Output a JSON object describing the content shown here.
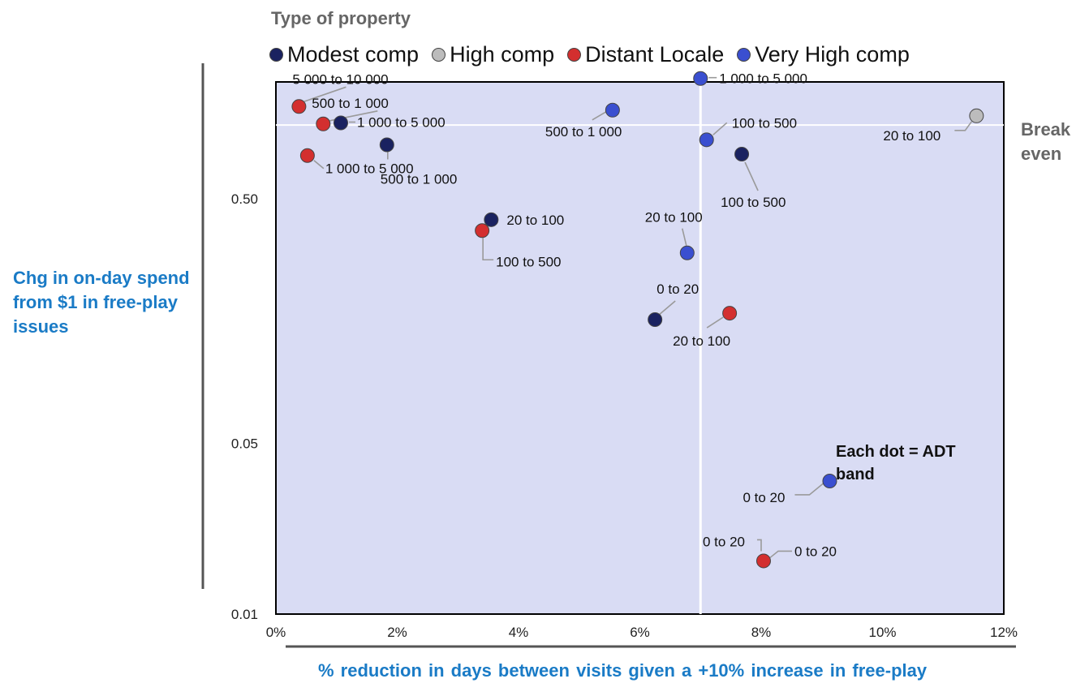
{
  "legend": {
    "title": "Type of property",
    "items": [
      {
        "label": "Modest comp",
        "color": "#1a2260"
      },
      {
        "label": "High comp",
        "color": "#bcbcbc"
      },
      {
        "label": "Distant Locale",
        "color": "#d32f2f"
      },
      {
        "label": "Very High comp",
        "color": "#3a4fd0"
      }
    ]
  },
  "annotations": {
    "break_even_line1": "Break",
    "break_even_line2": "even",
    "callout_line1": "Each dot = ADT",
    "callout_line2": "band"
  },
  "chart_data": {
    "type": "scatter",
    "title": "",
    "xlabel": "% reduction in days between visits given a +10% increase in free-play",
    "ylabel": "Chg in on-day spend from $1 in free-play issues",
    "x_scale": "linear",
    "y_scale": "log",
    "xlim": [
      0,
      12
    ],
    "ylim": [
      0.01,
      1.5
    ],
    "x_ticks": [
      {
        "value": 0,
        "label": "0%"
      },
      {
        "value": 2,
        "label": "2%"
      },
      {
        "value": 4,
        "label": "4%"
      },
      {
        "value": 6,
        "label": "6%"
      },
      {
        "value": 8,
        "label": "8%"
      },
      {
        "value": 10,
        "label": "10%"
      },
      {
        "value": 12,
        "label": "12%"
      }
    ],
    "y_ticks": [
      {
        "value": 0.01,
        "label": "0.01"
      },
      {
        "value": 0.05,
        "label": "0.05"
      },
      {
        "value": 0.5,
        "label": "0.50"
      }
    ],
    "reference_lines": {
      "x": 7.0,
      "y": 1.0
    },
    "background": "#d9dcf4",
    "series": [
      {
        "name": "Modest comp",
        "color": "#1a2260",
        "points": [
          {
            "label": "1 000 to 5 000",
            "x": 1.07,
            "y": 1.02
          },
          {
            "label": "500 to 1 000",
            "x": 1.83,
            "y": 0.83
          },
          {
            "label": "20 to 100",
            "x": 3.55,
            "y": 0.41
          },
          {
            "label": "100 to 500",
            "x": 7.68,
            "y": 0.76
          },
          {
            "label": "0 to 20",
            "x": 6.25,
            "y": 0.16
          }
        ]
      },
      {
        "name": "High comp",
        "color": "#bcbcbc",
        "points": [
          {
            "label": "20 to 100",
            "x": 11.55,
            "y": 1.09
          }
        ]
      },
      {
        "name": "Distant Locale",
        "color": "#d32f2f",
        "points": [
          {
            "label": "5 000 to 10 000",
            "x": 0.38,
            "y": 1.19
          },
          {
            "label": "500 to 1 000",
            "x": 0.78,
            "y": 1.01
          },
          {
            "label": "1 000 to 5 000",
            "x": 0.52,
            "y": 0.75
          },
          {
            "label": "100 to 500",
            "x": 3.4,
            "y": 0.37
          },
          {
            "label": "20 to 100",
            "x": 7.48,
            "y": 0.17
          },
          {
            "label": "0 to 20",
            "x": 8.04,
            "y": 0.0165
          }
        ]
      },
      {
        "name": "Very High comp",
        "color": "#3a4fd0",
        "points": [
          {
            "label": "500 to 1 000",
            "x": 5.55,
            "y": 1.15
          },
          {
            "label": "1 000 to 5 000",
            "x": 7.0,
            "y": 1.55
          },
          {
            "label": "100 to 500",
            "x": 7.1,
            "y": 0.87
          },
          {
            "label": "20 to 100",
            "x": 6.78,
            "y": 0.3
          },
          {
            "label": "0 to 20",
            "x": 9.13,
            "y": 0.035
          }
        ]
      }
    ]
  }
}
